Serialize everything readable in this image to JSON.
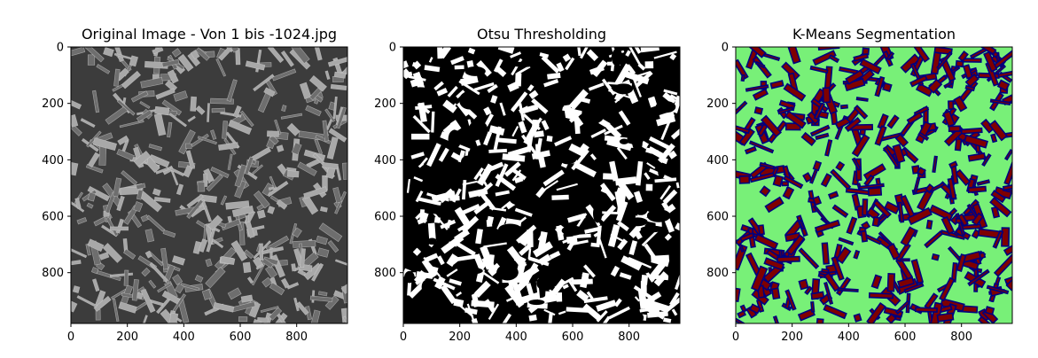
{
  "chart_data": [
    {
      "type": "heatmap",
      "title": "Original Image - Von 1 bis -1024.jpg",
      "style": "grayscale-micrograph",
      "palette": {
        "bg": "#3c3c3c",
        "mid": "#6e6e6e",
        "fg": "#a8a8a8",
        "edge": "#d2d2d2"
      },
      "xlim": [
        0,
        980
      ],
      "ylim": [
        980,
        0
      ],
      "xticks": [
        0,
        200,
        400,
        600,
        800
      ],
      "yticks": [
        0,
        200,
        400,
        600,
        800
      ],
      "xlabel": "",
      "ylabel": ""
    },
    {
      "type": "heatmap",
      "title": "Otsu Thresholding",
      "style": "binary",
      "palette": {
        "bg": "#000000",
        "fg": "#ffffff"
      },
      "xlim": [
        0,
        980
      ],
      "ylim": [
        980,
        0
      ],
      "xticks": [
        0,
        200,
        400,
        600,
        800
      ],
      "yticks": [
        0,
        200,
        400,
        600,
        800
      ],
      "xlabel": "",
      "ylabel": ""
    },
    {
      "type": "heatmap",
      "title": "K-Means Segmentation",
      "style": "three-cluster",
      "palette": {
        "bg": "#78f078",
        "fg": "#7f0000",
        "edge": "#00007f"
      },
      "xlim": [
        0,
        980
      ],
      "ylim": [
        980,
        0
      ],
      "xticks": [
        0,
        200,
        400,
        600,
        800
      ],
      "yticks": [
        0,
        200,
        400,
        600,
        800
      ],
      "xlabel": "",
      "ylabel": ""
    }
  ]
}
